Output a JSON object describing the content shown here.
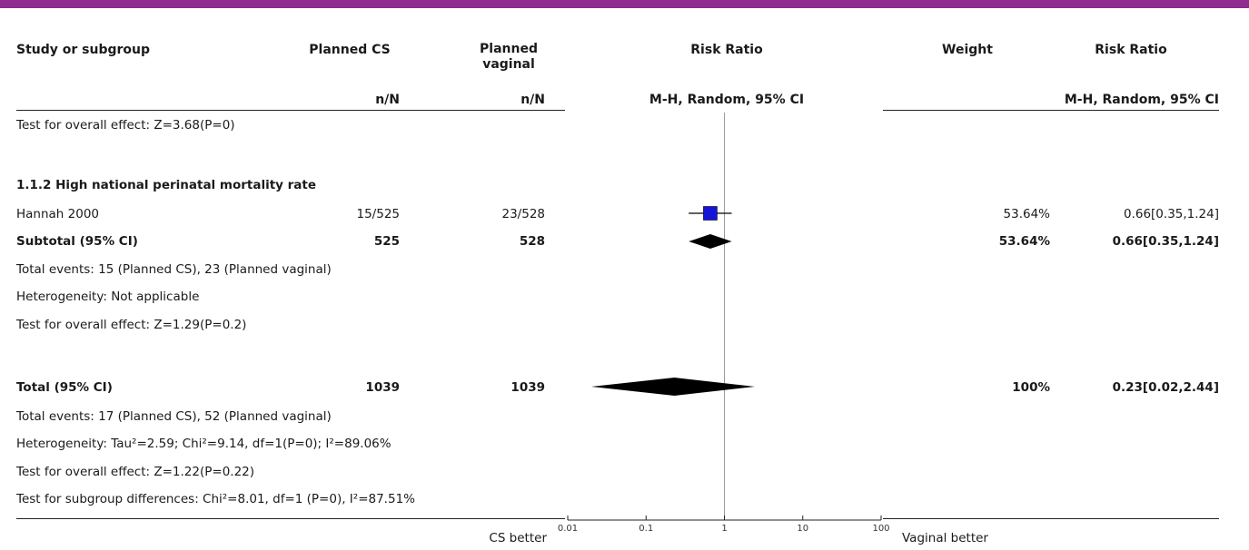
{
  "header": {
    "study_col": "Study or subgroup",
    "cs_col": "Planned CS",
    "vag_col": "Planned vaginal",
    "rr_col": "Risk Ratio",
    "weight_col": "Weight",
    "rr2_col": "Risk Ratio",
    "cs_sub": "n/N",
    "vag_sub": "n/N",
    "rr_sub": "M-H, Random, 95% CI",
    "rr2_sub": "M-H, Random, 95% CI"
  },
  "rows": {
    "prev_test": "Test for overall effect: Z=3.68(P=0)",
    "subgroup_title": "1.1.2 High national perinatal mortality rate",
    "hannah_name": "Hannah 2000",
    "hannah_cs": "15/525",
    "hannah_vag": "23/528",
    "hannah_weight": "53.64%",
    "hannah_ci": "0.66[0.35,1.24]",
    "subtotal_label": "Subtotal (95% CI)",
    "subtotal_cs": "525",
    "subtotal_vag": "528",
    "subtotal_weight": "53.64%",
    "subtotal_ci": "0.66[0.35,1.24]",
    "sub_events": "Total events: 15 (Planned CS), 23 (Planned vaginal)",
    "sub_het": "Heterogeneity: Not applicable",
    "sub_test": "Test for overall effect: Z=1.29(P=0.2)",
    "total_label": "Total (95% CI)",
    "total_cs": "1039",
    "total_vag": "1039",
    "total_weight": "100%",
    "total_ci": "0.23[0.02,2.44]",
    "tot_events": "Total events: 17 (Planned CS), 52 (Planned vaginal)",
    "tot_het": "Heterogeneity: Tau²=2.59; Chi²=9.14, df=1(P=0); I²=89.06%",
    "tot_test": "Test for overall effect: Z=1.22(P=0.22)",
    "subgroup_diff": "Test for subgroup differences: Chi²=8.01, df=1 (P=0), I²=87.51%"
  },
  "footer": {
    "left_label": "CS better",
    "right_label": "Vaginal better"
  },
  "colors": {
    "brand_bar": "#8e2c8f",
    "study_square": "#1515d8",
    "diamond": "#000000"
  },
  "chart_data": {
    "type": "forest",
    "scale": "log",
    "xlim": [
      0.01,
      100
    ],
    "ticks": [
      "0.01",
      "0.1",
      "1",
      "10",
      "100"
    ],
    "tick_values": [
      0.01,
      0.1,
      1,
      10,
      100
    ],
    "studies": [
      {
        "name": "Hannah 2000",
        "rr": 0.66,
        "lo": 0.35,
        "hi": 1.24,
        "weight": 53.64
      }
    ],
    "subtotals": [
      {
        "name": "Subtotal (95% CI)",
        "rr": 0.66,
        "lo": 0.35,
        "hi": 1.24
      }
    ],
    "total": {
      "name": "Total (95% CI)",
      "rr": 0.23,
      "lo": 0.02,
      "hi": 2.44
    }
  }
}
